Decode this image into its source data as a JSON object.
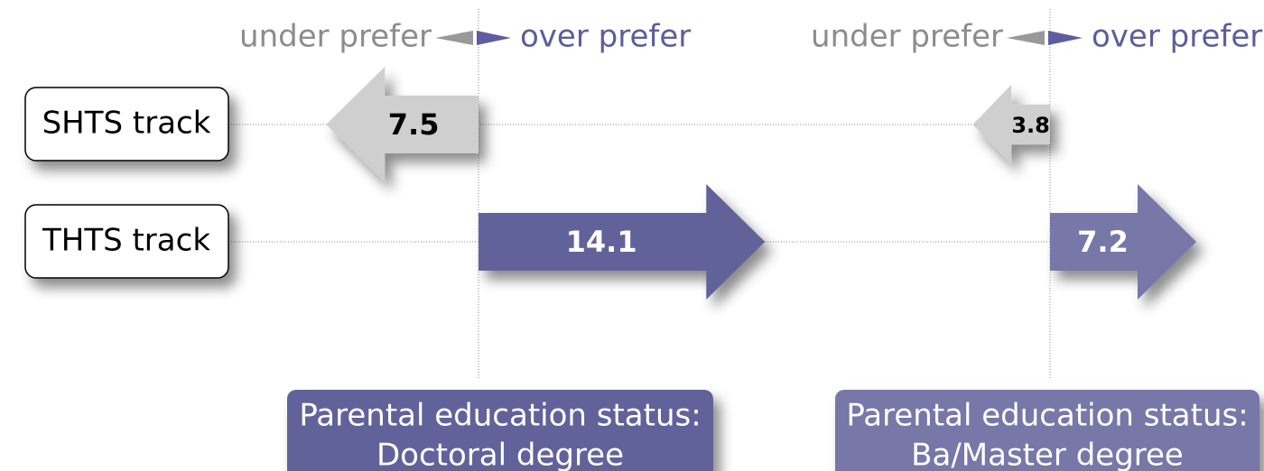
{
  "labels": {
    "under": "under prefer",
    "over": "over prefer"
  },
  "rows": [
    "SHTS track",
    "THTS track"
  ],
  "panels": [
    {
      "title_lines": [
        "Parental education status:",
        "Doctoral degree"
      ],
      "values": [
        -7.5,
        14.1
      ],
      "value_labels": [
        "7.5",
        "14.1"
      ],
      "color": "#62629a"
    },
    {
      "title_lines": [
        "Parental education status:",
        "Ba/Master degree"
      ],
      "values": [
        -3.8,
        7.2
      ],
      "value_labels": [
        "3.8",
        "7.2"
      ],
      "color": "#7777a8"
    }
  ]
}
